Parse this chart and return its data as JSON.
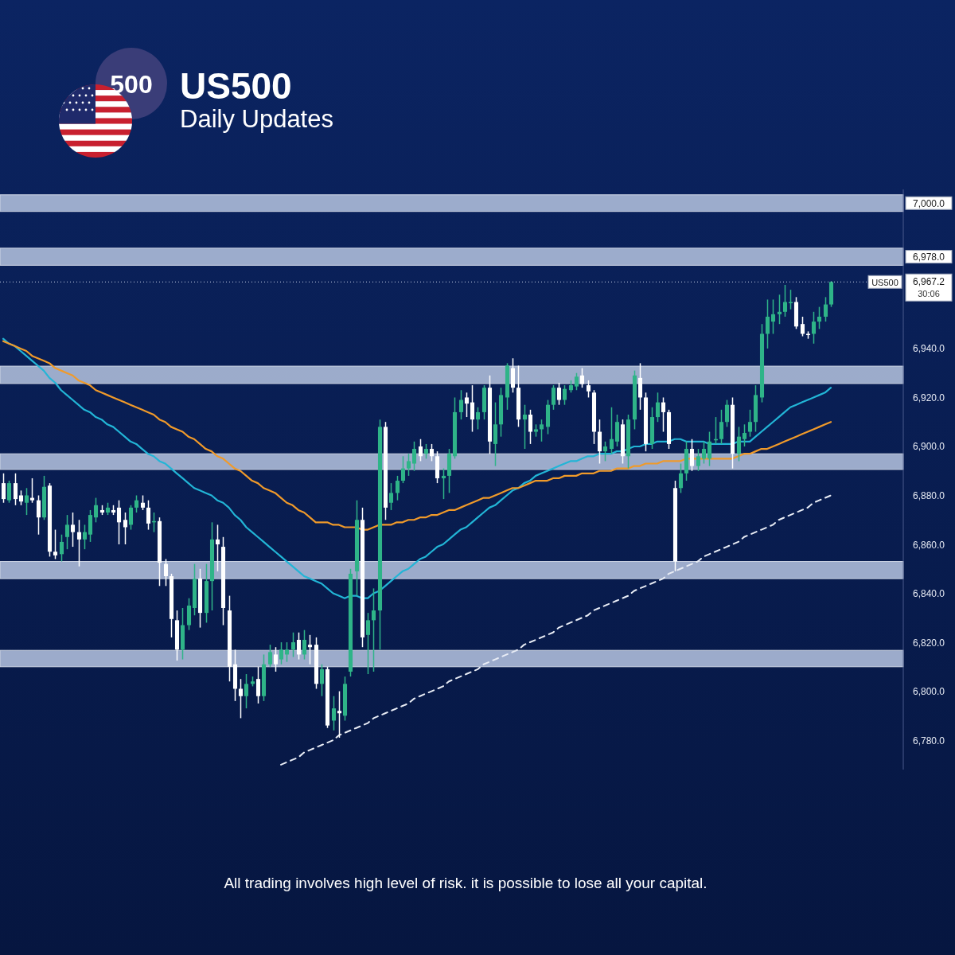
{
  "chart_data": {
    "type": "candlestick",
    "title": "US500",
    "subtitle": "Daily Updates",
    "tick_labels": "y",
    "categories": [
      null,
      null,
      null,
      null,
      null,
      null,
      null,
      null,
      null,
      null,
      null,
      null,
      null,
      null,
      null,
      null,
      null,
      null,
      null,
      null,
      null,
      null,
      null,
      null,
      null,
      null,
      null,
      null,
      null,
      null,
      null,
      null,
      null,
      null,
      null,
      null,
      null,
      null,
      null,
      null,
      null,
      null,
      null,
      null,
      null,
      null,
      null,
      null,
      null,
      null,
      null,
      null,
      null,
      null,
      null,
      null,
      null,
      null,
      null,
      null,
      null,
      null,
      null,
      null,
      null,
      null,
      null,
      null,
      null,
      null,
      null,
      null,
      null,
      null,
      null,
      null,
      null,
      null,
      null,
      null,
      null,
      null,
      null,
      null,
      null,
      null,
      null,
      null,
      null,
      null,
      null,
      null,
      null,
      null,
      null,
      null,
      null,
      null,
      null,
      null,
      null,
      null,
      null,
      null,
      null,
      null,
      null,
      null,
      null,
      null,
      null,
      null,
      null,
      null,
      null,
      null,
      null,
      null,
      null,
      null,
      null,
      null,
      null,
      null,
      null,
      null,
      null,
      null,
      null,
      null,
      null,
      null,
      null,
      null,
      null,
      null,
      null,
      null,
      null,
      null,
      null,
      null,
      null,
      null
    ],
    "ylim": [
      6768,
      7005
    ],
    "yticks": [
      {
        "value": 6780,
        "label": "6,780.0"
      },
      {
        "value": 6800,
        "label": "6,800.0"
      },
      {
        "value": 6820,
        "label": "6,820.0"
      },
      {
        "value": 6840,
        "label": "6,840.0"
      },
      {
        "value": 6860,
        "label": "6,860.0"
      },
      {
        "value": 6880,
        "label": "6,880.0"
      },
      {
        "value": 6900,
        "label": "6,900.0"
      },
      {
        "value": 6920,
        "label": "6,920.0"
      },
      {
        "value": 6940,
        "label": "6,940.0"
      }
    ],
    "bands": [
      {
        "axis": "y",
        "from": 6996,
        "to": 7002.8,
        "label": "7,000.0",
        "color": "#a9b8d6"
      },
      {
        "axis": "y",
        "from": 6974,
        "to": 6981,
        "label": "6,978.0",
        "color": "#a9b8d6"
      },
      {
        "axis": "y",
        "from": 6925.7,
        "to": 6932.8,
        "color": "#a9b8d6"
      },
      {
        "axis": "y",
        "from": 6890.6,
        "to": 6897,
        "color": "#a9b8d6"
      },
      {
        "axis": "y",
        "from": 6846,
        "to": 6853,
        "color": "#a9b8d6"
      },
      {
        "axis": "y",
        "from": 6810,
        "to": 6816.7,
        "color": "#a9b8d6"
      }
    ],
    "ref_lines": [
      {
        "axis": "y",
        "value": 6967.2,
        "label": "6,967.2",
        "color": "#c8d0e6",
        "line_style": "dotted"
      }
    ],
    "annotations": [
      "500",
      "US500",
      "30:06",
      "All trading involves high level of risk. it is possible to lose all your capital."
    ],
    "series": [
      {
        "ohlc": [
          [
            6885,
            6889,
            6877,
            6878.5
          ],
          [
            6878,
            6886,
            6877,
            6885
          ],
          [
            6885,
            6889,
            6876,
            6878.5
          ],
          [
            6880,
            6882,
            6876,
            6877.5
          ],
          [
            6877,
            6883,
            6872,
            6880
          ],
          [
            6879,
            6887,
            6877,
            6878
          ],
          [
            6878,
            6880,
            6864,
            6871
          ],
          [
            6871,
            6888,
            6870,
            6883.5
          ],
          [
            6884,
            6885,
            6855,
            6857
          ],
          [
            6857,
            6866,
            6854,
            6855.5
          ],
          [
            6856,
            6864,
            6853,
            6861
          ],
          [
            6863,
            6872,
            6858,
            6868
          ],
          [
            6868,
            6873,
            6859,
            6865
          ],
          [
            6865,
            6870,
            6851,
            6862
          ],
          [
            6862,
            6868,
            6858,
            6865
          ],
          [
            6864,
            6874,
            6861,
            6872
          ],
          [
            6871,
            6879,
            6869,
            6876
          ],
          [
            6874,
            6876,
            6872,
            6873
          ],
          [
            6873,
            6877,
            6872,
            6875
          ],
          [
            6874,
            6876,
            6872,
            6873
          ],
          [
            6875,
            6878,
            6860,
            6869
          ],
          [
            6870,
            6873,
            6860,
            6867
          ],
          [
            6868,
            6876,
            6866,
            6875
          ],
          [
            6875,
            6880,
            6873,
            6878
          ],
          [
            6877,
            6880,
            6874,
            6875
          ],
          [
            6875,
            6878,
            6866,
            6868.5
          ],
          [
            6869,
            6873,
            6865,
            6869.5
          ],
          [
            6869.5,
            6871,
            6843,
            6852.5
          ],
          [
            6852,
            6854,
            6843,
            6847
          ],
          [
            6847,
            6848,
            6822,
            6829.5
          ],
          [
            6829,
            6833,
            6812.5,
            6817
          ],
          [
            6817,
            6834,
            6813,
            6827
          ],
          [
            6827,
            6838,
            6825,
            6835
          ],
          [
            6834,
            6852,
            6831,
            6846
          ],
          [
            6846,
            6850,
            6826,
            6832
          ],
          [
            6832,
            6852,
            6828,
            6845
          ],
          [
            6845,
            6869,
            6833,
            6862
          ],
          [
            6862,
            6868,
            6849,
            6860
          ],
          [
            6859,
            6863,
            6827,
            6834
          ],
          [
            6833,
            6839,
            6804,
            6810
          ],
          [
            6811,
            6817,
            6796,
            6801
          ],
          [
            6801,
            6805,
            6789,
            6798
          ],
          [
            6798,
            6807,
            6793,
            6803
          ],
          [
            6803,
            6806,
            6802,
            6804
          ],
          [
            6805,
            6810,
            6795,
            6798
          ],
          [
            6798,
            6815,
            6796,
            6811
          ],
          [
            6811,
            6819,
            6810,
            6816
          ],
          [
            6815,
            6818,
            6808,
            6811
          ],
          [
            6813,
            6820,
            6811,
            6817
          ],
          [
            6815,
            6820,
            6812,
            6817
          ],
          [
            6817,
            6824,
            6814,
            6820
          ],
          [
            6821,
            6824,
            6813,
            6815
          ],
          [
            6815,
            6825,
            6813,
            6821
          ],
          [
            6819,
            6823,
            6811,
            6818
          ],
          [
            6819,
            6822,
            6801,
            6803
          ],
          [
            6803,
            6811,
            6798,
            6809
          ],
          [
            6809,
            6810,
            6785,
            6786
          ],
          [
            6788,
            6798,
            6784,
            6793
          ],
          [
            6792,
            6800,
            6781,
            6791
          ],
          [
            6790,
            6806,
            6788,
            6803
          ],
          [
            6808,
            6850,
            6806,
            6848
          ],
          [
            6849,
            6878,
            6839,
            6870
          ],
          [
            6870,
            6875,
            6818,
            6822
          ],
          [
            6823,
            6832,
            6807,
            6829
          ],
          [
            6829,
            6842,
            6808,
            6833
          ],
          [
            6833,
            6911,
            6817,
            6908
          ],
          [
            6908,
            6910,
            6870,
            6875
          ],
          [
            6877,
            6885,
            6874,
            6881
          ],
          [
            6881,
            6888,
            6878,
            6886
          ],
          [
            6886,
            6896,
            6885,
            6891
          ],
          [
            6891,
            6897,
            6888,
            6894
          ],
          [
            6893,
            6902,
            6890,
            6899
          ],
          [
            6900,
            6903,
            6894,
            6896
          ],
          [
            6897,
            6901,
            6895,
            6899
          ],
          [
            6899,
            6901,
            6894,
            6896
          ],
          [
            6896,
            6898,
            6885,
            6887
          ],
          [
            6887,
            6891,
            6878.5,
            6888
          ],
          [
            6888,
            6899,
            6881,
            6897
          ],
          [
            6896,
            6920,
            6895,
            6914
          ],
          [
            6914,
            6923,
            6911,
            6919
          ],
          [
            6920,
            6922,
            6912,
            6917.5
          ],
          [
            6918,
            6925,
            6906,
            6911
          ],
          [
            6911,
            6916,
            6907,
            6914
          ],
          [
            6914,
            6925,
            6911,
            6924
          ],
          [
            6924,
            6929,
            6897,
            6902
          ],
          [
            6901,
            6918,
            6892,
            6909
          ],
          [
            6909,
            6924,
            6904,
            6921
          ],
          [
            6920,
            6934,
            6915,
            6933
          ],
          [
            6932,
            6936,
            6922,
            6924
          ],
          [
            6924,
            6933,
            6908,
            6911
          ],
          [
            6911,
            6917,
            6899,
            6913
          ],
          [
            6913,
            6915,
            6901,
            6906
          ],
          [
            6906,
            6909,
            6904,
            6907
          ],
          [
            6907,
            6911,
            6902,
            6909
          ],
          [
            6908,
            6919,
            6905,
            6917
          ],
          [
            6917,
            6925,
            6915,
            6924
          ],
          [
            6924,
            6926,
            6917,
            6919
          ],
          [
            6919,
            6925,
            6917,
            6923.5
          ],
          [
            6923,
            6927,
            6922,
            6925
          ],
          [
            6924.5,
            6930,
            6923,
            6928.5
          ],
          [
            6929,
            6932,
            6924,
            6925.5
          ],
          [
            6925,
            6927,
            6920,
            6922.5
          ],
          [
            6922,
            6923,
            6901,
            6906
          ],
          [
            6906,
            6911,
            6893,
            6898
          ],
          [
            6898,
            6902,
            6894,
            6900
          ],
          [
            6899,
            6916,
            6897,
            6903
          ],
          [
            6902,
            6913,
            6900,
            6910
          ],
          [
            6909,
            6911,
            6893,
            6896
          ],
          [
            6896,
            6913,
            6891,
            6911
          ],
          [
            6911,
            6931,
            6907,
            6929
          ],
          [
            6928,
            6934,
            6915,
            6920
          ],
          [
            6920,
            6922,
            6898,
            6901
          ],
          [
            6901,
            6916,
            6899,
            6912
          ],
          [
            6912,
            6922,
            6910,
            6918
          ],
          [
            6918,
            6920,
            6906,
            6914
          ],
          [
            6914,
            6915,
            6899,
            6901
          ],
          [
            6883,
            6886,
            6849,
            6853
          ],
          [
            6883,
            6893,
            6881,
            6889
          ],
          [
            6889,
            6902,
            6886,
            6899
          ],
          [
            6899,
            6903,
            6890,
            6892
          ],
          [
            6892,
            6899,
            6890,
            6896
          ],
          [
            6895,
            6902,
            6893,
            6899
          ],
          [
            6895,
            6906,
            6892,
            6902
          ],
          [
            6902.5,
            6912,
            6901,
            6903
          ],
          [
            6903,
            6915,
            6901,
            6910
          ],
          [
            6910,
            6919,
            6908,
            6917
          ],
          [
            6917,
            6920,
            6891,
            6897
          ],
          [
            6897,
            6908,
            6894,
            6904
          ],
          [
            6903,
            6909,
            6900,
            6905.5
          ],
          [
            6906,
            6915,
            6904,
            6910
          ],
          [
            6910,
            6925,
            6906,
            6921
          ],
          [
            6920,
            6950,
            6918,
            6946
          ],
          [
            6946,
            6960,
            6940,
            6953
          ],
          [
            6951,
            6960,
            6946,
            6954
          ],
          [
            6954,
            6962,
            6950,
            6955
          ],
          [
            6955,
            6966,
            6953,
            6959
          ],
          [
            6958.5,
            6964,
            6956,
            6959
          ],
          [
            6959,
            6961,
            6948,
            6949
          ],
          [
            6950,
            6953,
            6945,
            6946
          ],
          [
            6946,
            6947,
            6944,
            6945.5
          ],
          [
            6946,
            6955,
            6942,
            6951
          ],
          [
            6951,
            6957,
            6948,
            6953
          ],
          [
            6953,
            6961,
            6951,
            6958
          ],
          [
            6958,
            6967.5,
            6957,
            6967.2
          ]
        ],
        "colors": [
          "#ffffff",
          "#2fb488",
          "#ffffff",
          "#ffffff",
          "#2fb488",
          "#ffffff",
          "#ffffff",
          "#2fb488",
          "#ffffff",
          "#ffffff",
          "#2fb488",
          "#2fb488",
          "#ffffff",
          "#ffffff",
          "#2fb488",
          "#2fb488",
          "#2fb488",
          "#ffffff",
          "#2fb488",
          "#ffffff",
          "#ffffff",
          "#ffffff",
          "#2fb488",
          "#2fb488",
          "#ffffff",
          "#ffffff",
          "#2fb488",
          "#ffffff",
          "#ffffff",
          "#ffffff",
          "#ffffff",
          "#2fb488",
          "#2fb488",
          "#2fb488",
          "#ffffff",
          "#2fb488",
          "#2fb488",
          "#ffffff",
          "#ffffff",
          "#ffffff",
          "#ffffff",
          "#ffffff",
          "#2fb488",
          "#2fb488",
          "#ffffff",
          "#2fb488",
          "#2fb488",
          "#ffffff",
          "#2fb488",
          "#2fb488",
          "#2fb488",
          "#ffffff",
          "#2fb488",
          "#ffffff",
          "#ffffff",
          "#2fb488",
          "#ffffff",
          "#2fb488",
          "#ffffff",
          "#2fb488",
          "#2fb488",
          "#2fb488",
          "#ffffff",
          "#2fb488",
          "#2fb488",
          "#2fb488",
          "#ffffff",
          "#2fb488",
          "#2fb488",
          "#2fb488",
          "#2fb488",
          "#2fb488",
          "#ffffff",
          "#2fb488",
          "#ffffff",
          "#ffffff",
          "#2fb488",
          "#2fb488",
          "#2fb488",
          "#2fb488",
          "#ffffff",
          "#ffffff",
          "#2fb488",
          "#2fb488",
          "#ffffff",
          "#2fb488",
          "#2fb488",
          "#2fb488",
          "#ffffff",
          "#ffffff",
          "#2fb488",
          "#ffffff",
          "#2fb488",
          "#2fb488",
          "#2fb488",
          "#2fb488",
          "#ffffff",
          "#2fb488",
          "#2fb488",
          "#2fb488",
          "#ffffff",
          "#ffffff",
          "#ffffff",
          "#ffffff",
          "#2fb488",
          "#2fb488",
          "#2fb488",
          "#ffffff",
          "#2fb488",
          "#2fb488",
          "#ffffff",
          "#ffffff",
          "#2fb488",
          "#2fb488",
          "#ffffff",
          "#ffffff",
          "#ffffff",
          "#2fb488",
          "#2fb488",
          "#ffffff",
          "#2fb488",
          "#2fb488",
          "#2fb488",
          "#2fb488",
          "#2fb488",
          "#2fb488",
          "#ffffff",
          "#2fb488",
          "#2fb488",
          "#2fb488",
          "#2fb488",
          "#2fb488",
          "#2fb488",
          "#2fb488",
          "#2fb488",
          "#2fb488",
          "#2fb488",
          "#ffffff",
          "#ffffff",
          "#ffffff",
          "#2fb488",
          "#2fb488",
          "#2fb488",
          "#2fb488"
        ]
      },
      {
        "type": "line",
        "color": "#22b5d6",
        "values": [
          6944,
          6942,
          6941,
          6939,
          6937,
          6935,
          6933,
          6931,
          6928,
          6926,
          6923,
          6921,
          6919,
          6917,
          6915,
          6914,
          6912,
          6911,
          6909,
          6908,
          6906,
          6904,
          6902,
          6901,
          6899,
          6897,
          6896,
          6894,
          6893,
          6891,
          6889,
          6887,
          6885,
          6883,
          6882,
          6881,
          6880,
          6878,
          6877,
          6875,
          6872,
          6870,
          6867,
          6865,
          6863,
          6861,
          6859,
          6857,
          6855,
          6853,
          6851,
          6849,
          6847,
          6846,
          6845,
          6844,
          6842,
          6840,
          6839,
          6838,
          6839,
          6839,
          6838,
          6838,
          6840,
          6841,
          6843,
          6845,
          6847,
          6849,
          6850,
          6852,
          6854,
          6855,
          6857,
          6859,
          6860,
          6862,
          6864,
          6866,
          6867,
          6869,
          6871,
          6873,
          6875,
          6876,
          6878,
          6880,
          6882,
          6883,
          6885,
          6886,
          6888,
          6889,
          6890,
          6891,
          6892,
          6893,
          6894,
          6894,
          6895,
          6896,
          6896,
          6897,
          6897,
          6897,
          6898,
          6898,
          6899,
          6900,
          6900,
          6901,
          6901,
          6902,
          6902,
          6902,
          6903,
          6903,
          6902,
          6902,
          6902,
          6902,
          6901,
          6901,
          6901,
          6901,
          6901,
          6902,
          6902,
          6902,
          6904,
          6906,
          6908,
          6910,
          6912,
          6914,
          6916,
          6917,
          6918,
          6919,
          6920,
          6921,
          6922,
          6924
        ]
      },
      {
        "type": "line",
        "color": "#f09a2a",
        "values": [
          6943,
          6942,
          6941,
          6940,
          6939,
          6937,
          6936,
          6935,
          6934,
          6932,
          6931,
          6930,
          6929,
          6927,
          6926,
          6925,
          6923,
          6922,
          6921,
          6920,
          6919,
          6918,
          6917,
          6916,
          6915,
          6914,
          6913,
          6911,
          6910,
          6908,
          6907,
          6906,
          6904,
          6903,
          6901,
          6899,
          6898,
          6896,
          6895,
          6893,
          6891,
          6890,
          6888,
          6886,
          6885,
          6883,
          6882,
          6881,
          6879,
          6877,
          6876,
          6874,
          6873,
          6871,
          6869,
          6869,
          6869,
          6868,
          6868,
          6867,
          6867,
          6867,
          6866,
          6866,
          6867,
          6868,
          6868,
          6868,
          6869,
          6869,
          6870,
          6870,
          6871,
          6871,
          6872,
          6872,
          6873,
          6874,
          6874,
          6875,
          6876,
          6877,
          6878,
          6879,
          6879,
          6880,
          6881,
          6882,
          6883,
          6883,
          6884,
          6885,
          6886,
          6886,
          6886,
          6887,
          6887,
          6888,
          6888,
          6888,
          6889,
          6889,
          6889,
          6890,
          6890,
          6890,
          6891,
          6891,
          6891,
          6892,
          6892,
          6893,
          6893,
          6893,
          6894,
          6894,
          6894,
          6894,
          6895,
          6895,
          6895,
          6895,
          6895,
          6895,
          6895,
          6895,
          6895,
          6896,
          6897,
          6897,
          6898,
          6899,
          6899,
          6900,
          6901,
          6902,
          6903,
          6904,
          6905,
          6906,
          6907,
          6908,
          6909,
          6910
        ]
      },
      {
        "type": "line",
        "color": "#e8ecf5",
        "line_style": "dashed",
        "values": [
          null,
          null,
          null,
          null,
          null,
          null,
          null,
          null,
          null,
          null,
          null,
          null,
          null,
          null,
          null,
          null,
          null,
          null,
          null,
          null,
          null,
          null,
          null,
          null,
          null,
          null,
          null,
          null,
          null,
          null,
          null,
          null,
          null,
          null,
          null,
          null,
          null,
          null,
          null,
          null,
          null,
          null,
          null,
          null,
          null,
          null,
          null,
          null,
          6770,
          6771,
          6772,
          6773,
          6775,
          6776,
          6777,
          6778,
          6779,
          6780,
          6782,
          6783,
          6784,
          6785,
          6786,
          6787,
          6789,
          6790,
          6791,
          6792,
          6793,
          6794,
          6795,
          6797,
          6798,
          6799,
          6800,
          6801,
          6802,
          6804,
          6805,
          6806,
          6807,
          6808,
          6809,
          6811,
          6812,
          6813,
          6814,
          6815,
          6816,
          6817,
          6819,
          6820,
          6821,
          6822,
          6823,
          6824,
          6826,
          6827,
          6828,
          6829,
          6830,
          6831,
          6833,
          6834,
          6835,
          6836,
          6837,
          6838,
          6839,
          6841,
          6842,
          6843,
          6844,
          6845,
          6846,
          6848,
          6849,
          6850,
          6851,
          6852,
          6853,
          6855,
          6856,
          6857,
          6858,
          6859,
          6860,
          6861,
          6863,
          6864,
          6865,
          6866,
          6867,
          6868,
          6870,
          6871,
          6872,
          6873,
          6874,
          6875,
          6877,
          6878,
          6879,
          6880
        ]
      }
    ]
  }
}
